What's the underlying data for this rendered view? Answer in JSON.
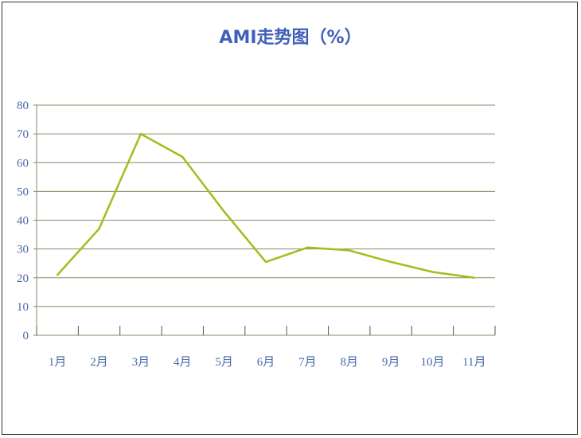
{
  "chart_data": {
    "type": "line",
    "title": "AMI走势图（%）",
    "categories": [
      "1月",
      "2月",
      "3月",
      "4月",
      "5月",
      "6月",
      "7月",
      "8月",
      "9月",
      "10月",
      "11月"
    ],
    "series": [
      {
        "values": [
          21,
          37,
          70,
          62,
          43,
          25.5,
          30.5,
          29.5,
          25.5,
          22,
          20
        ]
      }
    ],
    "yticks": [
      "0",
      "10",
      "20",
      "30",
      "40",
      "50",
      "60",
      "70",
      "80"
    ],
    "ylim": [
      0,
      80
    ],
    "grid": true,
    "legend": "none",
    "colors": {
      "line": "#9fbf1a",
      "grid": "#8a8a6a",
      "axis_text": "#4a6aa8",
      "title": "#4060b8"
    }
  }
}
